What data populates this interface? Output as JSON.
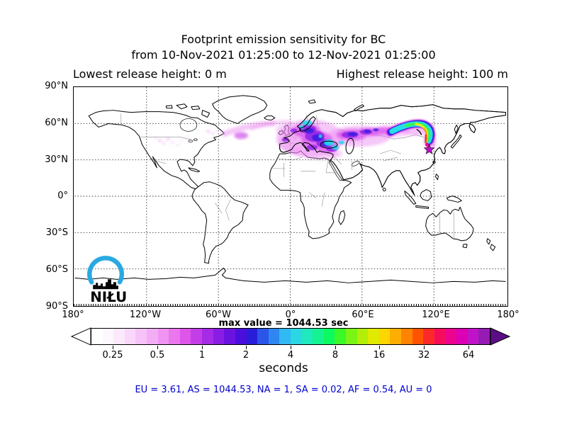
{
  "figure": {
    "title_line1": "Footprint emission sensitivity for BC",
    "title_line2": "from 10-Nov-2021 01:25:00 to 12-Nov-2021 01:25:00",
    "title_lowest": "Lowest release height: 0 m",
    "title_highest": "Highest release height: 100 m"
  },
  "map": {
    "y_ticks": [
      "90°N",
      "60°N",
      "30°N",
      "0°",
      "30°S",
      "60°S",
      "90°S"
    ],
    "x_ticks": [
      "180°",
      "120°W",
      "60°W",
      "0°",
      "60°E",
      "120°E",
      "180°"
    ]
  },
  "colorbar": {
    "max_value_label": "max value = 1044.53 sec",
    "unit_label": "seconds",
    "ticks": [
      "0.25",
      "0.5",
      "1",
      "2",
      "4",
      "8",
      "16",
      "32",
      "64"
    ],
    "left_arrow_color": "#ffffff",
    "right_arrow_color": "#5c0d86",
    "segments": [
      "#ffffff",
      "#fef7fe",
      "#fce9fc",
      "#f9d7fa",
      "#f6c2f7",
      "#f3adf4",
      "#ef94f1",
      "#ea77ee",
      "#de55ea",
      "#c43ee8",
      "#a62be6",
      "#8a1de4",
      "#6b12e1",
      "#4a0edd",
      "#2a1dd9",
      "#2a55e9",
      "#2e87f0",
      "#30b9f2",
      "#2bd7e2",
      "#1fe9bd",
      "#14f392",
      "#0cf960",
      "#3bf829",
      "#79f414",
      "#b3ee08",
      "#e0e900",
      "#fdd500",
      "#feae00",
      "#fe8300",
      "#fe5400",
      "#fb2a28",
      "#f50d5c",
      "#ec038f",
      "#dc00b4",
      "#c013c8",
      "#951bb4"
    ]
  },
  "footer": {
    "region_values": "EU = 3.61,  AS = 1044.53,  NA = 1,  SA = 0.02,  AF = 0.54,  AU = 0",
    "text_color": "#0000cd"
  },
  "logo": {
    "text": "NIŁU",
    "arc_color": "#29a9e1",
    "skyline_color": "#000000"
  },
  "chart_data": {
    "type": "heatmap",
    "title": "Footprint emission sensitivity for BC",
    "period_start": "10-Nov-2021 01:25:00",
    "period_end": "12-Nov-2021 01:25:00",
    "lowest_release_height_m": 0,
    "highest_release_height_m": 100,
    "units": "seconds",
    "max_value_sec": 1044.53,
    "color_scale": {
      "type": "log2",
      "ticks": [
        0.25,
        0.5,
        1,
        2,
        4,
        8,
        16,
        32,
        64
      ],
      "open_ended": true
    },
    "x_axis": {
      "tick_labels": [
        "180°",
        "120°W",
        "60°W",
        "0°",
        "60°E",
        "120°E",
        "180°"
      ],
      "range_deg": [
        -180,
        180
      ],
      "grid_step_deg": 60,
      "grid_style": "dotted"
    },
    "y_axis": {
      "tick_labels": [
        "90°N",
        "60°N",
        "30°N",
        "0°",
        "30°S",
        "60°S",
        "90°S"
      ],
      "range_deg": [
        -90,
        90
      ],
      "grid_step_deg": 30,
      "grid_style": "dotted"
    },
    "region_sensitivity_sec": {
      "EU": 3.61,
      "AS": 1044.53,
      "NA": 1,
      "SA": 0.02,
      "AF": 0.54,
      "AU": 0
    },
    "receptor_marker": {
      "symbol": "star",
      "color": "#bb10cc",
      "lat_deg": 40,
      "lon_deg": 117
    },
    "plume_track": [
      {
        "lon": 117,
        "lat": 40,
        "intensity": "max (red/yellow at receptor)"
      },
      {
        "lon": 120,
        "lat": 46,
        "intensity": "high, yellow-green"
      },
      {
        "lon": 110,
        "lat": 53,
        "intensity": "high, cyan band"
      },
      {
        "lon": 95,
        "lat": 56,
        "intensity": "cyan band"
      },
      {
        "lon": 75,
        "lat": 56,
        "intensity": "cyan-blue with purple fringe"
      },
      {
        "lon": 55,
        "lat": 55,
        "intensity": "purple/blue"
      },
      {
        "lon": 35,
        "lat": 54,
        "intensity": "dense blue-purple over eastern Europe"
      },
      {
        "lon": 20,
        "lat": 57,
        "intensity": "dense purple/cyan over Scandinavia"
      },
      {
        "lon": 5,
        "lat": 55,
        "intensity": "magenta haze over central Europe"
      },
      {
        "lon": -15,
        "lat": 57,
        "intensity": "faint magenta over N Atlantic"
      },
      {
        "lon": -35,
        "lat": 56,
        "intensity": "faint magenta wisp"
      },
      {
        "lon": -50,
        "lat": 55,
        "intensity": "trace near Labrador"
      },
      {
        "lon": -105,
        "lat": 47,
        "intensity": "trace specks over N United States"
      }
    ]
  }
}
